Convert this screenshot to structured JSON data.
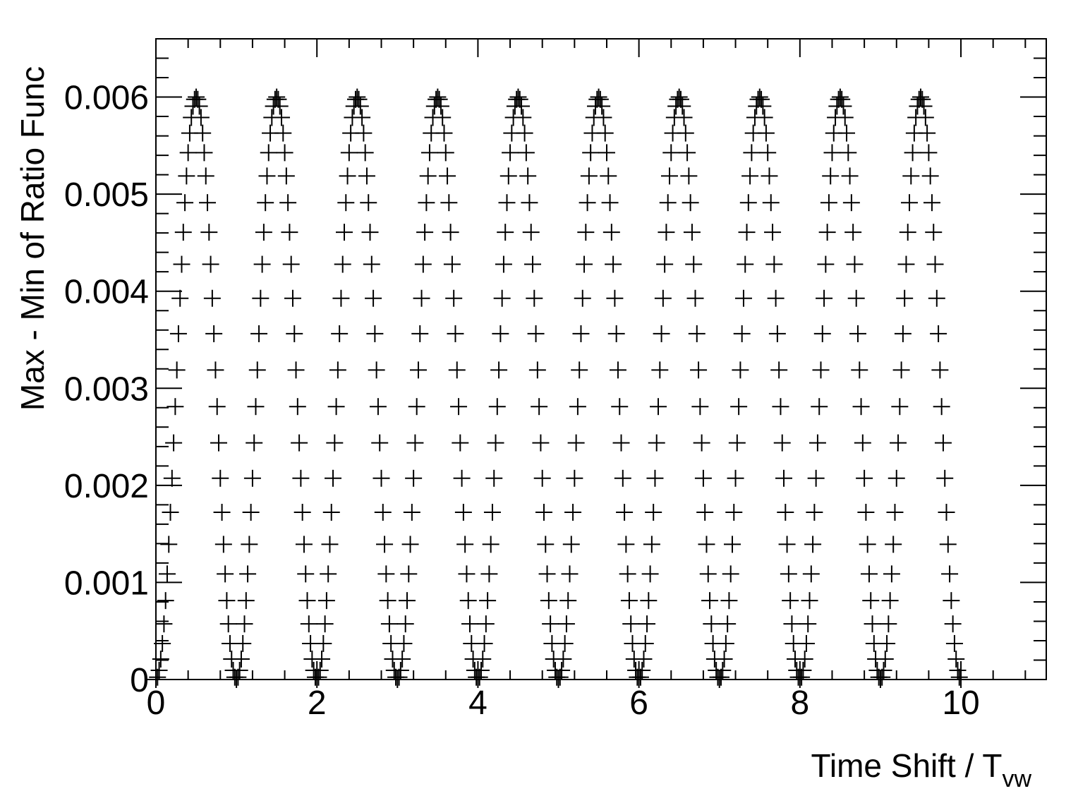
{
  "chart_data": {
    "type": "scatter",
    "title": "",
    "xlabel": "Time Shift / T",
    "xlabel_subscript": "vw",
    "ylabel": "Max - Min of Ratio Func",
    "xlim": [
      0,
      11.06
    ],
    "ylim": [
      0,
      0.0066
    ],
    "x_ticks": [
      0,
      2,
      4,
      6,
      8,
      10
    ],
    "x_tick_labels": [
      "0",
      "2",
      "4",
      "6",
      "8",
      "10"
    ],
    "y_ticks": [
      0,
      0.001,
      0.002,
      0.003,
      0.004,
      0.005,
      0.006
    ],
    "y_tick_labels": [
      "0",
      "0.001",
      "0.002",
      "0.003",
      "0.004",
      "0.005",
      "0.006"
    ],
    "marker": "plus",
    "marker_color": "#000000",
    "grid": false,
    "legend": "none",
    "series": [
      {
        "x_start": 0,
        "x_end": 10,
        "x_step": 0.02,
        "function": "0.006 * sin(pi * x)^2",
        "peak_value": 0.006,
        "peak_x": [
          0.5,
          1.5,
          2.5,
          3.5,
          4.5,
          5.5,
          6.5,
          7.5,
          8.5,
          9.5
        ],
        "zero_x": [
          0,
          1,
          2,
          3,
          4,
          5,
          6,
          7,
          8,
          9,
          10
        ]
      }
    ]
  }
}
